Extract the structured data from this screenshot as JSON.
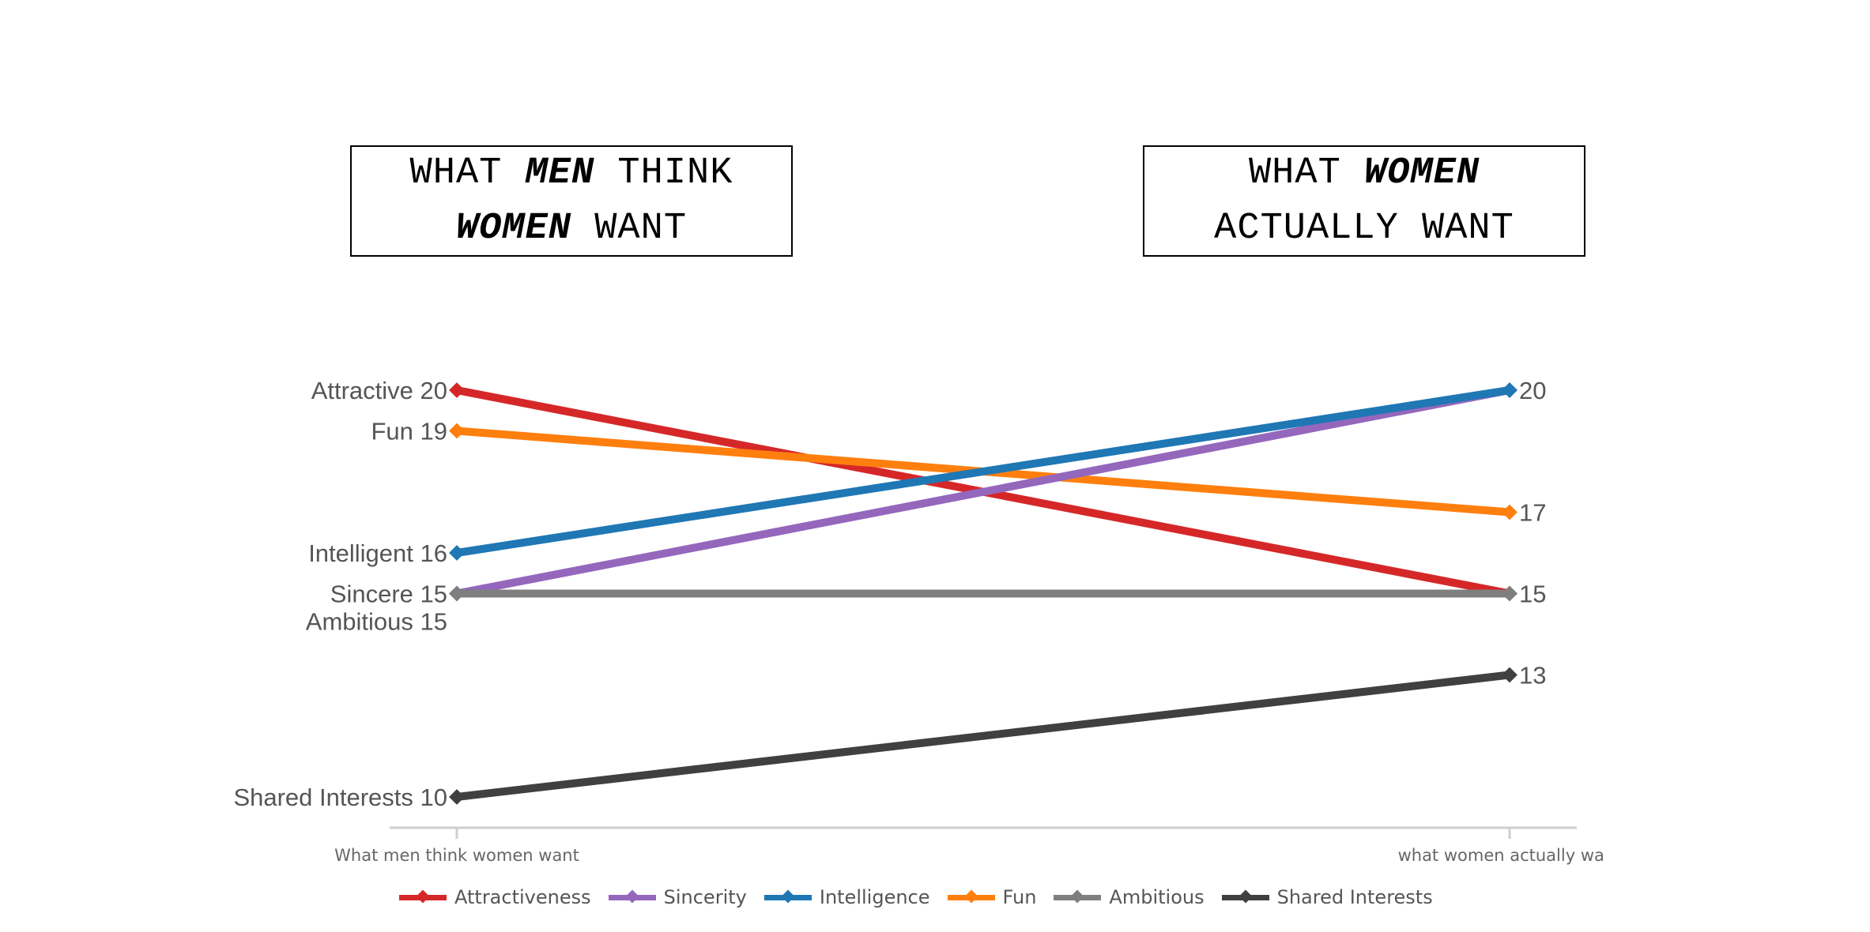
{
  "headers": {
    "left": {
      "line1_a": "WHAT ",
      "line1_b": "MEN",
      "line1_c": " THINK",
      "line2_a": "WOMEN",
      "line2_b": " WANT"
    },
    "right": {
      "line1_a": "WHAT ",
      "line1_b": "WOMEN",
      "line2_a": "ACTUALLY WANT"
    }
  },
  "chart_data": {
    "type": "line",
    "title": "",
    "xlabel": "",
    "ylabel": "",
    "categories": [
      "What men think women want",
      "what women actually want"
    ],
    "ylim": [
      8,
      21
    ],
    "grid": false,
    "legend_position": "bottom",
    "series": [
      {
        "name": "Attractiveness",
        "values": [
          20,
          15
        ],
        "color": "#d62728",
        "start_label": "Attractive 20"
      },
      {
        "name": "Sincerity",
        "values": [
          15,
          20
        ],
        "color": "#9467bd",
        "start_label": "Sincere 15"
      },
      {
        "name": "Intelligence",
        "values": [
          16,
          20
        ],
        "color": "#1f77b4",
        "start_label": "Intelligent 16"
      },
      {
        "name": "Fun",
        "values": [
          19,
          17
        ],
        "color": "#ff7f0e",
        "start_label": "Fun 19"
      },
      {
        "name": "Ambitious",
        "values": [
          15,
          15
        ],
        "color": "#7f7f7f",
        "start_label": "Ambitious 15"
      },
      {
        "name": "Shared Interests",
        "values": [
          10,
          13
        ],
        "color": "#404040",
        "start_label": "Shared Interests 10"
      }
    ],
    "end_labels": [
      "20",
      "17",
      "15",
      "13"
    ],
    "end_label_values": [
      20,
      17,
      15,
      13
    ]
  }
}
